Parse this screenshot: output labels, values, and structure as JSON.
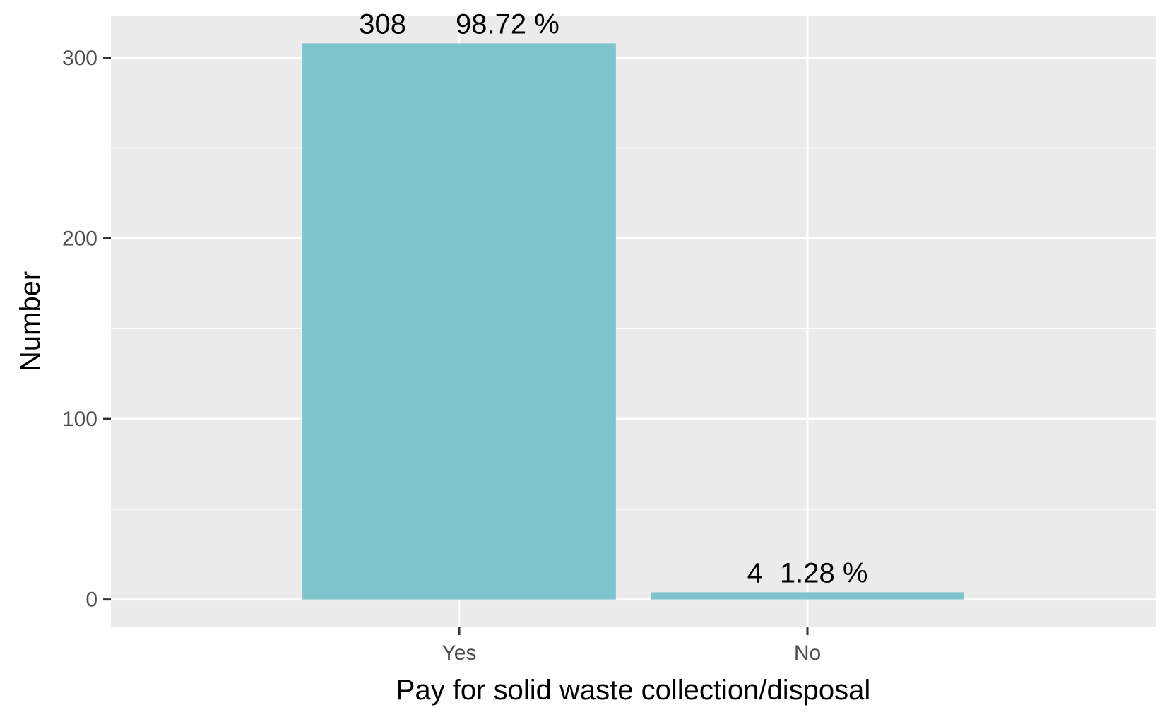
{
  "chart_data": {
    "type": "bar",
    "categories": [
      "Yes",
      "No"
    ],
    "values": [
      308,
      4
    ],
    "percent_labels": [
      "98.72 %",
      "1.28 %"
    ],
    "xlabel": "Pay for solid waste collection/disposal",
    "ylabel": "Number",
    "y_ticks": [
      0,
      100,
      200,
      300
    ],
    "ylim": [
      -15.4,
      323.4
    ],
    "grid": true,
    "colors": {
      "bar": "#7DC4CC",
      "panel": "#EBEBEB",
      "grid": "#FFFFFF",
      "tick_text": "#4D4D4D",
      "tick_mark": "#333333"
    }
  }
}
